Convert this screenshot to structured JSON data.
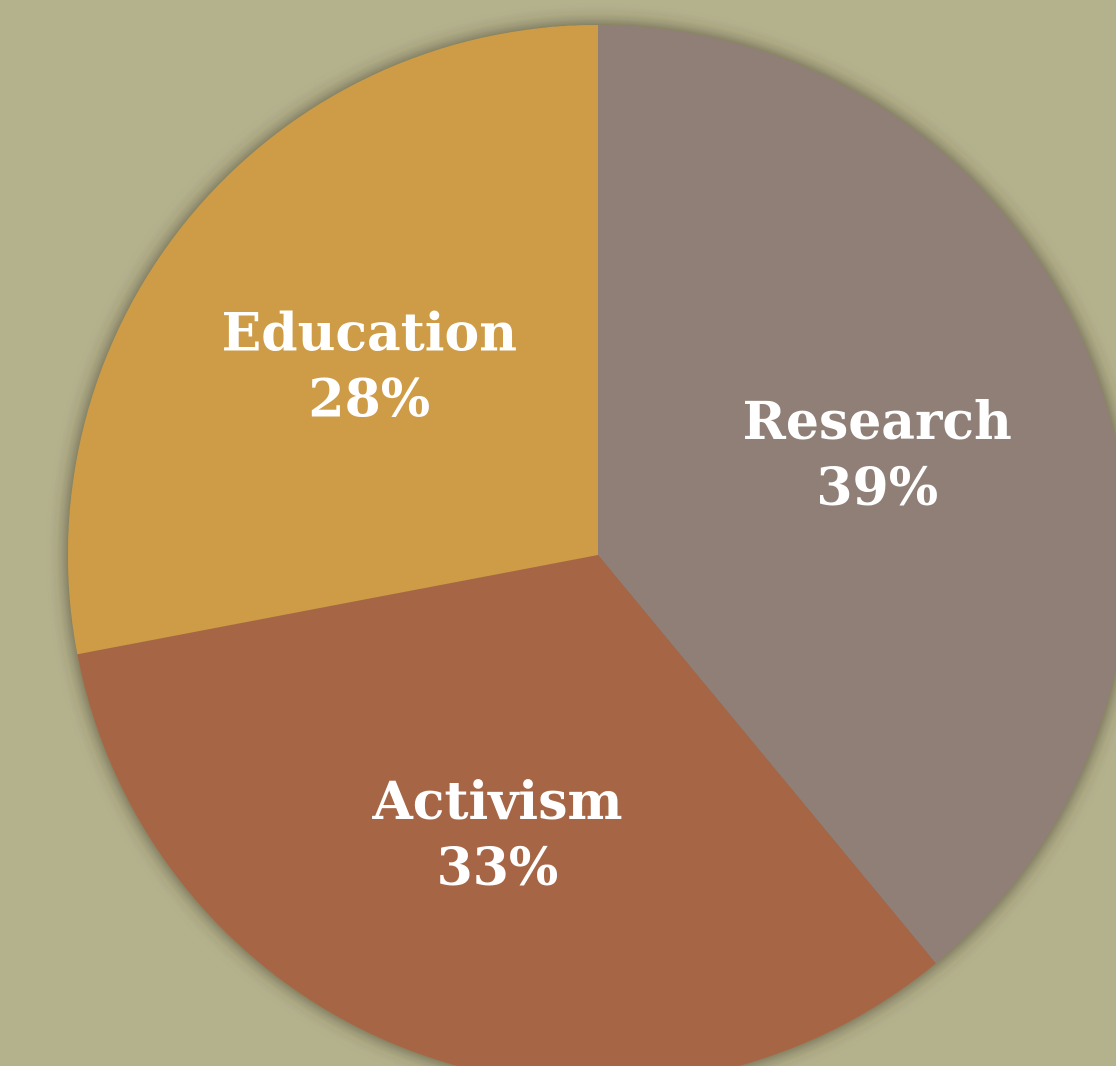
{
  "chart_data": {
    "type": "pie",
    "title": "",
    "start_angle_deg": 0,
    "direction": "clockwise",
    "slices": [
      {
        "label": "Research",
        "value": 39,
        "value_label": "39%",
        "color": "#8f7f76"
      },
      {
        "label": "Activism",
        "value": 33,
        "value_label": "33%",
        "color": "#a66645"
      },
      {
        "label": "Education",
        "value": 28,
        "value_label": "28%",
        "color": "#ce9c47"
      }
    ],
    "legend": "none",
    "background_color": "#b4b18d"
  }
}
